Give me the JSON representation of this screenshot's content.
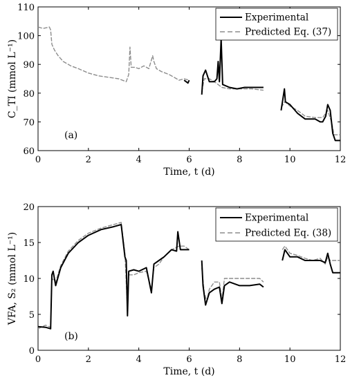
{
  "chart_data": [
    {
      "type": "line",
      "panel_label": "(a)",
      "ylabel": "C_TI (mmol L⁻¹)",
      "xlabel": "Time, t (d)",
      "xlim": [
        0,
        12
      ],
      "ylim": [
        60,
        110
      ],
      "xticks": [
        "0",
        "2",
        "4",
        "6",
        "8",
        "10",
        "12"
      ],
      "yticks": [
        "60",
        "70",
        "80",
        "90",
        "100",
        "110"
      ],
      "legend_position": "top-right",
      "series": [
        {
          "name": "Experimental",
          "color": "#000000",
          "style": "solid",
          "segments": [
            [
              [
                5.8,
                84.5
              ],
              [
                5.95,
                83.5
              ],
              [
                6.0,
                84.5
              ]
            ],
            [
              [
                6.5,
                79.5
              ],
              [
                6.55,
                86
              ],
              [
                6.65,
                88
              ],
              [
                6.8,
                84
              ],
              [
                7.0,
                84
              ],
              [
                7.1,
                85
              ],
              [
                7.15,
                91
              ],
              [
                7.2,
                84
              ],
              [
                7.27,
                99
              ],
              [
                7.33,
                83
              ],
              [
                7.6,
                82
              ],
              [
                7.9,
                81.5
              ],
              [
                8.2,
                82
              ],
              [
                8.5,
                82
              ],
              [
                8.95,
                82
              ]
            ],
            [
              [
                9.65,
                74
              ],
              [
                9.72,
                78
              ],
              [
                9.78,
                81.5
              ],
              [
                9.82,
                77
              ],
              [
                10.0,
                76
              ],
              [
                10.3,
                73
              ],
              [
                10.6,
                71
              ],
              [
                11.0,
                71
              ],
              [
                11.2,
                70
              ],
              [
                11.3,
                70
              ],
              [
                11.42,
                72
              ],
              [
                11.5,
                76
              ],
              [
                11.6,
                74
              ],
              [
                11.7,
                66
              ],
              [
                11.8,
                63.5
              ],
              [
                12.0,
                63.5
              ]
            ]
          ]
        },
        {
          "name": "Predicted Eq. (37)",
          "color": "#8c8c8c",
          "style": "dashed",
          "segments": [
            [
              [
                0.0,
                103
              ],
              [
                0.2,
                102.5
              ],
              [
                0.45,
                103
              ],
              [
                0.5,
                102
              ],
              [
                0.55,
                97
              ],
              [
                0.65,
                95
              ],
              [
                0.8,
                93
              ],
              [
                1.0,
                91
              ],
              [
                1.3,
                89.5
              ],
              [
                1.6,
                88.5
              ],
              [
                2.0,
                87
              ],
              [
                2.4,
                86
              ],
              [
                2.8,
                85.5
              ],
              [
                3.2,
                85
              ],
              [
                3.5,
                84
              ],
              [
                3.6,
                86.5
              ],
              [
                3.65,
                96
              ],
              [
                3.7,
                89
              ],
              [
                3.85,
                89
              ],
              [
                4.0,
                88.5
              ],
              [
                4.2,
                89.5
              ],
              [
                4.4,
                88.5
              ],
              [
                4.55,
                93
              ],
              [
                4.6,
                91
              ],
              [
                4.7,
                88.5
              ],
              [
                4.9,
                87.5
              ],
              [
                5.2,
                86.5
              ],
              [
                5.4,
                85.5
              ],
              [
                5.6,
                84.5
              ],
              [
                5.8,
                85
              ],
              [
                6.0,
                84.5
              ]
            ],
            [
              [
                6.5,
                80.5
              ],
              [
                6.6,
                85
              ],
              [
                6.8,
                85
              ],
              [
                7.0,
                84
              ],
              [
                7.3,
                82
              ],
              [
                7.6,
                81.5
              ],
              [
                8.0,
                81.5
              ],
              [
                8.5,
                81.5
              ],
              [
                8.95,
                81
              ]
            ],
            [
              [
                9.65,
                75
              ],
              [
                9.8,
                77
              ],
              [
                10.0,
                75.5
              ],
              [
                10.3,
                74
              ],
              [
                10.6,
                72
              ],
              [
                11.0,
                71.5
              ],
              [
                11.3,
                71.5
              ],
              [
                11.5,
                74
              ],
              [
                11.65,
                70
              ],
              [
                11.75,
                65.5
              ],
              [
                12.0,
                65.5
              ]
            ]
          ]
        }
      ]
    },
    {
      "type": "line",
      "panel_label": "(b)",
      "ylabel": "VFA, S₂ (mmol L⁻¹)",
      "xlabel": "Time, t (d)",
      "xlim": [
        0,
        12
      ],
      "ylim": [
        0,
        20
      ],
      "xticks": [
        "0",
        "2",
        "4",
        "6",
        "8",
        "10",
        "12"
      ],
      "yticks": [
        "0",
        "5",
        "10",
        "15",
        "20"
      ],
      "legend_position": "top-right",
      "series": [
        {
          "name": "Experimental",
          "color": "#000000",
          "style": "solid",
          "segments": [
            [
              [
                0.0,
                3.3
              ],
              [
                0.3,
                3.2
              ],
              [
                0.5,
                3.0
              ],
              [
                0.55,
                10.5
              ],
              [
                0.6,
                11.0
              ],
              [
                0.7,
                9.0
              ],
              [
                0.9,
                11.5
              ],
              [
                1.2,
                13.5
              ],
              [
                1.6,
                15.0
              ],
              [
                2.0,
                16.0
              ],
              [
                2.5,
                16.8
              ],
              [
                3.0,
                17.2
              ],
              [
                3.3,
                17.5
              ],
              [
                3.45,
                13.0
              ],
              [
                3.5,
                12.5
              ],
              [
                3.55,
                4.8
              ],
              [
                3.6,
                11.0
              ],
              [
                3.8,
                11.2
              ],
              [
                4.0,
                11.0
              ],
              [
                4.3,
                11.5
              ],
              [
                4.5,
                8.0
              ],
              [
                4.6,
                12.0
              ],
              [
                4.8,
                12.5
              ],
              [
                5.0,
                13.0
              ],
              [
                5.3,
                14.0
              ],
              [
                5.5,
                13.8
              ],
              [
                5.55,
                16.5
              ],
              [
                5.65,
                14.0
              ],
              [
                5.8,
                14.0
              ],
              [
                6.0,
                14.0
              ]
            ],
            [
              [
                6.5,
                12.5
              ],
              [
                6.55,
                9.0
              ],
              [
                6.65,
                6.3
              ],
              [
                6.8,
                8.0
              ],
              [
                7.0,
                8.5
              ],
              [
                7.2,
                8.8
              ],
              [
                7.3,
                6.5
              ],
              [
                7.4,
                9.0
              ],
              [
                7.6,
                9.5
              ],
              [
                8.0,
                9.0
              ],
              [
                8.4,
                9.0
              ],
              [
                8.8,
                9.2
              ],
              [
                8.95,
                8.8
              ]
            ],
            [
              [
                9.7,
                12.5
              ],
              [
                9.8,
                14.0
              ],
              [
                10.0,
                13.0
              ],
              [
                10.3,
                13.0
              ],
              [
                10.6,
                12.5
              ],
              [
                10.9,
                12.5
              ],
              [
                11.2,
                12.5
              ],
              [
                11.4,
                12.2
              ],
              [
                11.5,
                13.5
              ],
              [
                11.6,
                12.0
              ],
              [
                11.7,
                10.8
              ],
              [
                12.0,
                10.8
              ]
            ]
          ]
        },
        {
          "name": "Predicted Eq. (38)",
          "color": "#8c8c8c",
          "style": "dashed",
          "segments": [
            [
              [
                0.0,
                3.0
              ],
              [
                0.3,
                3.5
              ],
              [
                0.5,
                3.2
              ],
              [
                0.55,
                10.0
              ],
              [
                0.7,
                9.5
              ],
              [
                0.9,
                11.8
              ],
              [
                1.2,
                13.8
              ],
              [
                1.6,
                15.3
              ],
              [
                2.0,
                16.3
              ],
              [
                2.5,
                17.0
              ],
              [
                3.0,
                17.5
              ],
              [
                3.3,
                17.8
              ],
              [
                3.45,
                13.5
              ],
              [
                3.55,
                5.5
              ],
              [
                3.6,
                10.5
              ],
              [
                3.8,
                10.5
              ],
              [
                4.0,
                10.8
              ],
              [
                4.3,
                11.0
              ],
              [
                4.5,
                8.5
              ],
              [
                4.6,
                11.5
              ],
              [
                4.8,
                12.0
              ],
              [
                5.0,
                13.0
              ],
              [
                5.3,
                14.0
              ],
              [
                5.6,
                14.5
              ],
              [
                5.8,
                14.5
              ],
              [
                6.0,
                14.0
              ]
            ],
            [
              [
                6.5,
                11.5
              ],
              [
                6.6,
                8.0
              ],
              [
                6.7,
                6.8
              ],
              [
                6.8,
                8.5
              ],
              [
                7.0,
                9.5
              ],
              [
                7.2,
                9.5
              ],
              [
                7.3,
                7.0
              ],
              [
                7.4,
                10.0
              ],
              [
                7.6,
                10.0
              ],
              [
                8.0,
                10.0
              ],
              [
                8.4,
                10.0
              ],
              [
                8.8,
                10.0
              ],
              [
                8.95,
                9.5
              ]
            ],
            [
              [
                9.7,
                14.0
              ],
              [
                9.8,
                14.5
              ],
              [
                10.0,
                13.5
              ],
              [
                10.3,
                13.2
              ],
              [
                10.6,
                12.8
              ],
              [
                10.9,
                12.5
              ],
              [
                11.2,
                12.8
              ],
              [
                11.4,
                12.0
              ],
              [
                11.5,
                13.0
              ],
              [
                11.6,
                12.5
              ],
              [
                11.7,
                12.5
              ],
              [
                12.0,
                12.5
              ]
            ]
          ]
        }
      ]
    }
  ]
}
